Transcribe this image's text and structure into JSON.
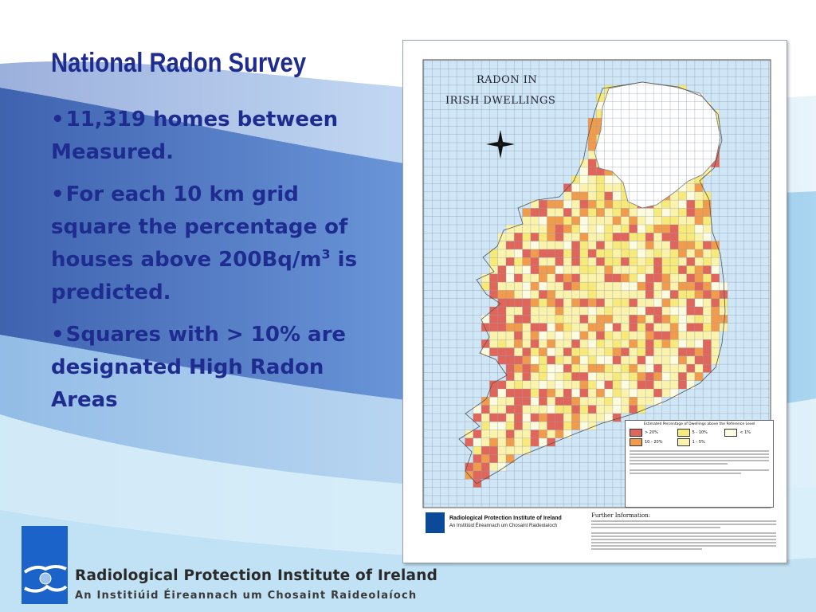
{
  "slide": {
    "title": "National Radon Survey",
    "bullets": [
      {
        "text": "11,319 homes between Measured."
      },
      {
        "text": "For each 10 km grid square the percentage of houses above 200Bq/m",
        "sup": "3",
        "after": " is predicted."
      },
      {
        "text": "Squares with > 10% are designated High Radon Areas"
      }
    ]
  },
  "map": {
    "title_line1": "RADON IN",
    "title_line2": "IRISH DWELLINGS",
    "legend_title": "Estimated Percentage of Dwellings above the Reference Level",
    "legend_items": [
      {
        "label": "> 20%",
        "color": "#e0655a"
      },
      {
        "label": "5 - 10%",
        "color": "#f7ea7a"
      },
      {
        "label": "< 1%",
        "color": "#fdfce0"
      },
      {
        "label": "10 - 20%",
        "color": "#f19c4c"
      },
      {
        "label": "1 - 5%",
        "color": "#fbf3ac"
      }
    ],
    "further_info_title": "Further Information:",
    "map_org_name": "Radiological Protection Institute of Ireland",
    "map_org_irish": "An Institiúid Éireannach um Chosaint Raideolaíoch",
    "colors": {
      "sea": "#cfe6f7",
      "land_base": "#fbf3ac",
      "northern_ireland": "#ffffff",
      "grid": "#8f9aa6"
    }
  },
  "footer": {
    "org_name": "Radiological Protection Institute of Ireland",
    "org_irish": "An Institiúid Éireannach um Chosaint Raideolaíoch"
  },
  "theme": {
    "title_color": "#1f2c8f",
    "wave_dark": "#3a62b4",
    "wave_mid": "#6f9fe0",
    "wave_light": "#bfe0f3",
    "logo_blue": "#1b63c8"
  }
}
